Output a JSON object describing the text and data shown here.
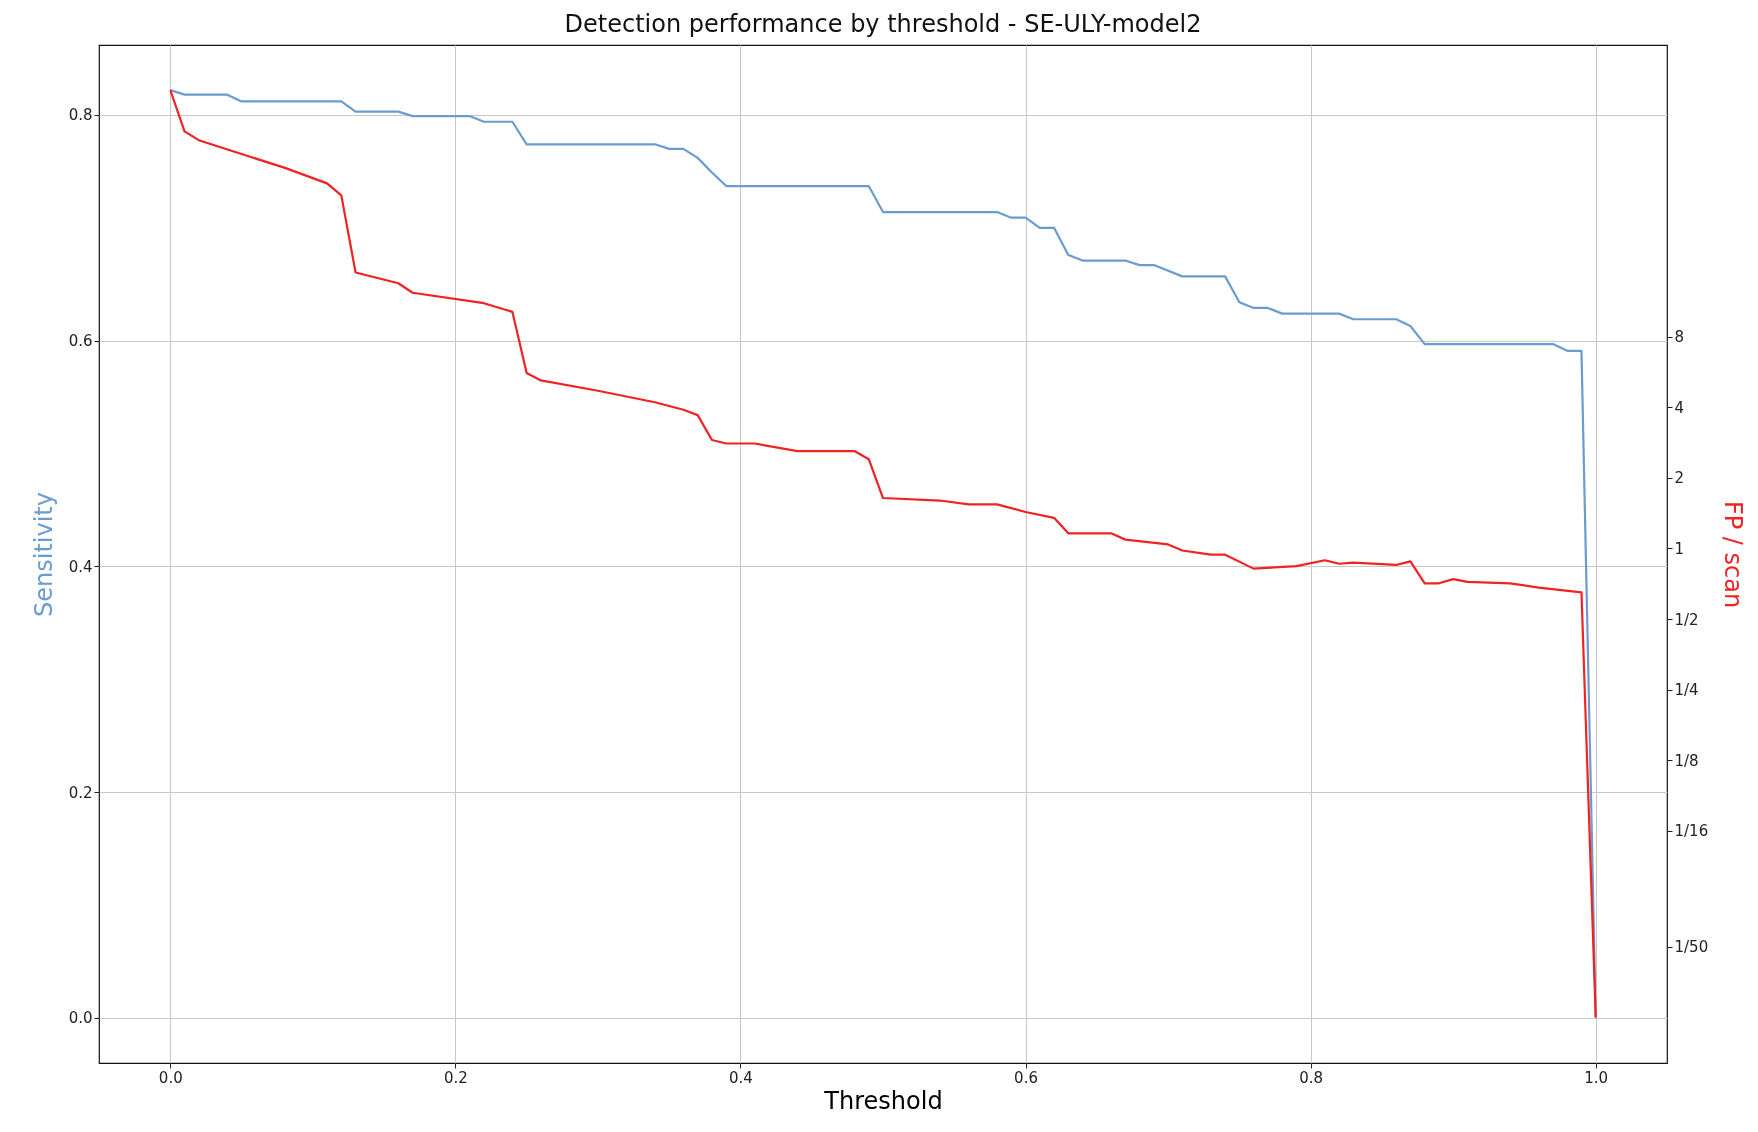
{
  "chart_data": {
    "type": "line",
    "title": "Detection performance by threshold - SE-ULY-model2",
    "xlabel": "Threshold",
    "ylabel": "Sensitivity",
    "y2label": "FP / scan",
    "xlim": [
      -0.05,
      1.05
    ],
    "xticks": [
      {
        "value": 0,
        "label": "0.0"
      },
      {
        "value": 0.2,
        "label": "0.2"
      },
      {
        "value": 0.4,
        "label": "0.4"
      },
      {
        "value": 0.6,
        "label": "0.6"
      },
      {
        "value": 0.8,
        "label": "0.8"
      },
      {
        "value": 1,
        "label": "1.0"
      }
    ],
    "ylim": [
      -0.04,
      0.862
    ],
    "yticks": [
      {
        "value": 0,
        "label": "0.0"
      },
      {
        "value": 0.2,
        "label": "0.2"
      },
      {
        "value": 0.4,
        "label": "0.4"
      },
      {
        "value": 0.6,
        "label": "0.6"
      },
      {
        "value": 0.8,
        "label": "0.8"
      }
    ],
    "y2lim": [
      0.0064,
      140
    ],
    "y2ticks": [
      8,
      4,
      2,
      1,
      {
        "value": 0.5,
        "label": "1/2"
      },
      {
        "value": 0.25,
        "label": "1/4"
      },
      {
        "value": 0.125,
        "label": "1/8"
      },
      {
        "value": 0.0625,
        "label": "1/16"
      },
      {
        "value": 0.02,
        "label": "1/50"
      }
    ],
    "log": "y2",
    "grid": true,
    "marker": "none",
    "line_style": "solid",
    "series": [
      {
        "color": "#6a9ccf",
        "x": [
          0,
          0.01,
          0.04,
          0.05,
          0.12,
          0.13,
          0.16,
          0.17,
          0.21,
          0.22,
          0.24,
          0.25,
          0.34,
          0.35,
          0.36,
          0.37,
          0.38,
          0.39,
          0.49,
          0.5,
          0.58,
          0.59,
          0.6,
          0.61,
          0.62,
          0.63,
          0.64,
          0.67,
          0.68,
          0.69,
          0.71,
          0.74,
          0.75,
          0.76,
          0.77,
          0.78,
          0.82,
          0.83,
          0.86,
          0.87,
          0.88,
          0.97,
          0.98,
          0.99,
          1.0
        ],
        "values": [
          0.822,
          0.818,
          0.818,
          0.812,
          0.812,
          0.803,
          0.803,
          0.799,
          0.799,
          0.794,
          0.794,
          0.774,
          0.774,
          0.77,
          0.77,
          0.762,
          0.749,
          0.737,
          0.737,
          0.714,
          0.714,
          0.709,
          0.709,
          0.7,
          0.7,
          0.676,
          0.671,
          0.671,
          0.667,
          0.667,
          0.657,
          0.657,
          0.634,
          0.629,
          0.629,
          0.624,
          0.624,
          0.619,
          0.619,
          0.613,
          0.597,
          0.597,
          0.591,
          0.591,
          0.0
        ]
      },
      {
        "color": "#f02222",
        "axis": "y2",
        "x": [
          0,
          0.01,
          0.02,
          0.05,
          0.08,
          0.11,
          0.12,
          0.13,
          0.16,
          0.17,
          0.22,
          0.24,
          0.25,
          0.26,
          0.3,
          0.34,
          0.36,
          0.37,
          0.38,
          0.39,
          0.41,
          0.44,
          0.48,
          0.49,
          0.5,
          0.54,
          0.56,
          0.58,
          0.6,
          0.62,
          0.63,
          0.66,
          0.67,
          0.7,
          0.71,
          0.73,
          0.74,
          0.76,
          0.79,
          0.81,
          0.82,
          0.83,
          0.86,
          0.87,
          0.88,
          0.89,
          0.9,
          0.91,
          0.94,
          0.96,
          0.99,
          1.0
        ],
        "values": [
          90,
          60,
          55,
          48,
          42,
          36,
          32,
          15,
          13.5,
          12.3,
          11.1,
          10.2,
          5.6,
          5.2,
          4.7,
          4.2,
          3.9,
          3.7,
          2.9,
          2.8,
          2.8,
          2.6,
          2.6,
          2.4,
          1.64,
          1.6,
          1.54,
          1.54,
          1.43,
          1.35,
          1.16,
          1.16,
          1.09,
          1.04,
          0.98,
          0.94,
          0.94,
          0.82,
          0.84,
          0.89,
          0.86,
          0.87,
          0.85,
          0.88,
          0.71,
          0.71,
          0.74,
          0.72,
          0.71,
          0.68,
          0.65,
          0.01
        ]
      }
    ]
  }
}
